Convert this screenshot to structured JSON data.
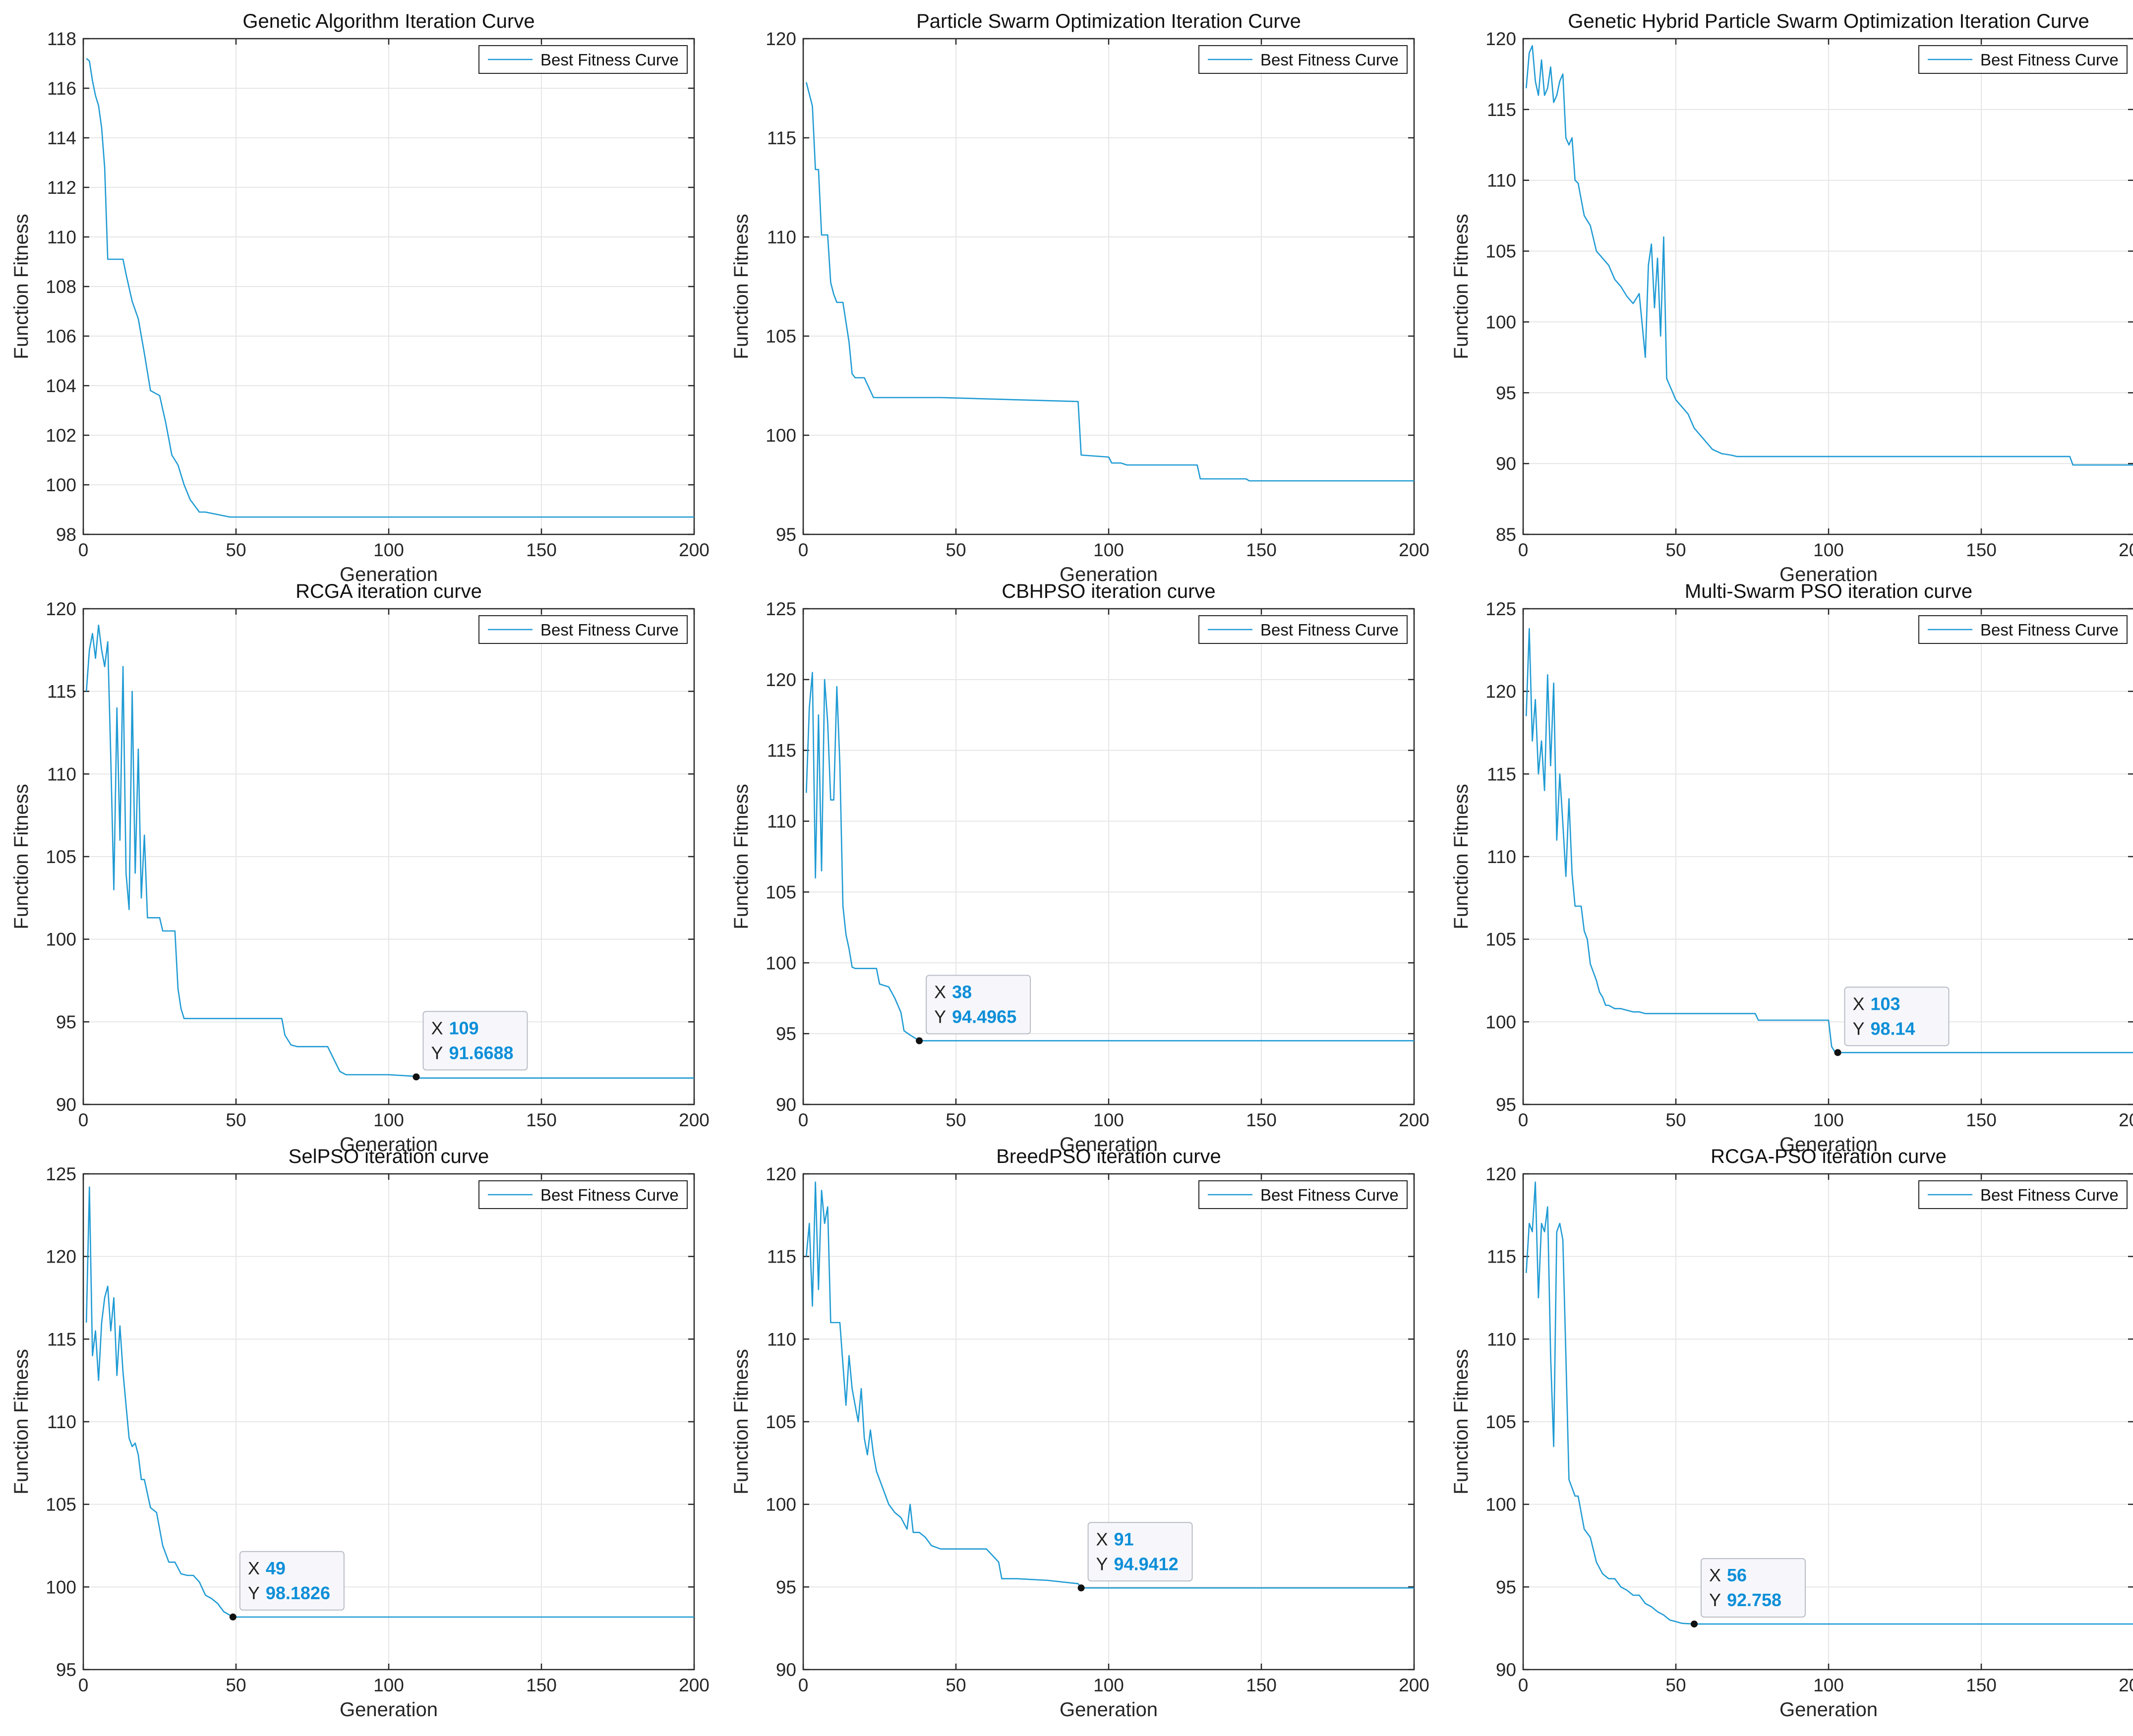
{
  "colors": {
    "line": "#1f9bd4",
    "grid": "#e6e6e6",
    "axes": "#262626",
    "datatip_value": "#0e8fd8",
    "datatip_bg": "#f7f7fb",
    "datatip_border": "#b8bcc6"
  },
  "common": {
    "xlabel": "Generation",
    "ylabel": "Function Fitness",
    "legend_label": "Best Fitness Curve",
    "x_ticks": [
      0,
      50,
      100,
      150,
      200
    ],
    "datatip_x_label": "X",
    "datatip_y_label": "Y"
  },
  "chart_data": [
    {
      "type": "line",
      "title": "Genetic Algorithm Iteration Curve",
      "xlabel": "Generation",
      "ylabel": "Function Fitness",
      "xlim": [
        0,
        200
      ],
      "ylim": [
        98,
        118
      ],
      "y_ticks": [
        98,
        100,
        102,
        104,
        106,
        108,
        110,
        112,
        114,
        116,
        118
      ],
      "legend": [
        "Best Fitness Curve"
      ],
      "legend_position": "top-right",
      "series": [
        {
          "name": "Best Fitness Curve",
          "x": [
            1,
            2,
            3,
            4,
            5,
            6,
            7,
            8,
            12,
            13,
            14,
            16,
            18,
            20,
            22,
            25,
            27,
            29,
            31,
            33,
            35,
            38,
            40,
            44,
            48,
            200
          ],
          "y": [
            117.2,
            117.1,
            116.3,
            115.7,
            115.3,
            114.4,
            112.8,
            109.1,
            109.1,
            109.1,
            108.5,
            107.4,
            106.7,
            105.3,
            103.8,
            103.6,
            102.5,
            101.2,
            100.8,
            100.0,
            99.4,
            98.9,
            98.9,
            98.8,
            98.7,
            98.7
          ]
        }
      ],
      "datatip": null
    },
    {
      "type": "line",
      "title": "Particle Swarm Optimization Iteration Curve",
      "xlabel": "Generation",
      "ylabel": "Function Fitness",
      "xlim": [
        0,
        200
      ],
      "ylim": [
        95,
        120
      ],
      "y_ticks": [
        95,
        100,
        105,
        110,
        115,
        120
      ],
      "legend": [
        "Best Fitness Curve"
      ],
      "legend_position": "top-right",
      "series": [
        {
          "name": "Best Fitness Curve",
          "x": [
            1,
            3,
            4,
            5,
            6,
            8,
            9,
            10,
            11,
            13,
            15,
            16,
            17,
            20,
            23,
            45,
            90,
            91,
            100,
            101,
            104,
            106,
            129,
            130,
            145,
            146,
            200
          ],
          "y": [
            117.8,
            116.6,
            113.4,
            113.4,
            110.1,
            110.1,
            107.7,
            107.1,
            106.7,
            106.7,
            104.7,
            103.1,
            102.9,
            102.9,
            101.9,
            101.9,
            101.7,
            99.0,
            98.9,
            98.6,
            98.6,
            98.5,
            98.5,
            97.8,
            97.8,
            97.7,
            97.7
          ]
        }
      ],
      "datatip": null
    },
    {
      "type": "line",
      "title": "Genetic Hybrid Particle Swarm Optimization Iteration Curve",
      "xlabel": "Generation",
      "ylabel": "Function Fitness",
      "xlim": [
        0,
        200
      ],
      "ylim": [
        85,
        120
      ],
      "y_ticks": [
        85,
        90,
        95,
        100,
        105,
        110,
        115,
        120
      ],
      "legend": [
        "Best Fitness Curve"
      ],
      "legend_position": "top-right",
      "series": [
        {
          "name": "Best Fitness Curve",
          "x": [
            1,
            2,
            3,
            4,
            5,
            6,
            7,
            8,
            9,
            10,
            11,
            12,
            13,
            14,
            15,
            16,
            17,
            18,
            20,
            22,
            24,
            26,
            28,
            30,
            32,
            34,
            36,
            38,
            40,
            41,
            42,
            43,
            44,
            45,
            46,
            47,
            48,
            50,
            52,
            54,
            56,
            58,
            60,
            62,
            65,
            68,
            70,
            75,
            80,
            100,
            150,
            179,
            180,
            200
          ],
          "y": [
            116.5,
            119.0,
            119.5,
            117.0,
            116.0,
            118.5,
            116.0,
            116.5,
            118.0,
            115.5,
            116.0,
            117.0,
            117.5,
            113.0,
            112.5,
            113.0,
            110.0,
            109.8,
            107.5,
            106.8,
            105.0,
            104.5,
            104.0,
            103.0,
            102.5,
            101.8,
            101.3,
            102.0,
            97.5,
            104.0,
            105.5,
            101.0,
            104.5,
            99.0,
            106.0,
            96.0,
            95.5,
            94.5,
            94.0,
            93.5,
            92.5,
            92.0,
            91.5,
            91.0,
            90.7,
            90.6,
            90.5,
            90.5,
            90.5,
            90.5,
            90.5,
            90.5,
            89.9,
            89.9
          ]
        }
      ],
      "datatip": null
    },
    {
      "type": "line",
      "title": "RCGA iteration curve",
      "xlabel": "Generation",
      "ylabel": "Function Fitness",
      "xlim": [
        0,
        200
      ],
      "ylim": [
        90,
        120
      ],
      "y_ticks": [
        90,
        95,
        100,
        105,
        110,
        115,
        120
      ],
      "legend": [
        "Best Fitness Curve"
      ],
      "legend_position": "top-right",
      "series": [
        {
          "name": "Best Fitness Curve",
          "x": [
            1,
            2,
            3,
            4,
            5,
            6,
            7,
            8,
            9,
            10,
            11,
            12,
            13,
            14,
            15,
            16,
            17,
            18,
            19,
            20,
            21,
            22,
            25,
            26,
            28,
            30,
            31,
            32,
            33,
            34,
            40,
            50,
            65,
            66,
            68,
            70,
            80,
            84,
            86,
            100,
            109,
            110,
            200
          ],
          "y": [
            115.0,
            117.5,
            118.5,
            117.0,
            119.0,
            117.5,
            116.5,
            118.0,
            111.0,
            103.0,
            114.0,
            106.0,
            116.5,
            104.0,
            101.8,
            115.0,
            104.0,
            111.5,
            102.5,
            106.3,
            101.3,
            101.3,
            101.3,
            100.5,
            100.5,
            100.5,
            97.0,
            95.8,
            95.2,
            95.2,
            95.2,
            95.2,
            95.2,
            94.2,
            93.6,
            93.5,
            93.5,
            92.0,
            91.8,
            91.8,
            91.7,
            91.6,
            91.6
          ]
        }
      ],
      "datatip": {
        "x": 109,
        "y": 91.6688,
        "x_text": "109",
        "y_text": "91.6688"
      }
    },
    {
      "type": "line",
      "title": "CBHPSO iteration curve",
      "xlabel": "Generation",
      "ylabel": "Function Fitness",
      "xlim": [
        0,
        200
      ],
      "ylim": [
        90,
        125
      ],
      "y_ticks": [
        90,
        95,
        100,
        105,
        110,
        115,
        120,
        125
      ],
      "legend": [
        "Best Fitness Curve"
      ],
      "legend_position": "top-right",
      "series": [
        {
          "name": "Best Fitness Curve",
          "x": [
            1,
            2,
            3,
            4,
            5,
            6,
            7,
            8,
            9,
            10,
            11,
            12,
            13,
            14,
            15,
            16,
            17,
            20,
            24,
            25,
            28,
            30,
            32,
            33,
            35,
            38,
            40,
            60,
            100,
            200
          ],
          "y": [
            112.0,
            118.0,
            120.5,
            106.0,
            117.5,
            106.5,
            120.0,
            117.0,
            111.5,
            111.5,
            119.5,
            114.0,
            104.0,
            102.0,
            101.0,
            99.7,
            99.6,
            99.6,
            99.6,
            98.5,
            98.3,
            97.5,
            96.5,
            95.2,
            94.9,
            94.5,
            94.5,
            94.5,
            94.5,
            94.5
          ]
        }
      ],
      "datatip": {
        "x": 38,
        "y": 94.4965,
        "x_text": "38",
        "y_text": "94.4965"
      }
    },
    {
      "type": "line",
      "title": "Multi-Swarm PSO iteration curve",
      "xlabel": "Generation",
      "ylabel": "Function Fitness",
      "xlim": [
        0,
        200
      ],
      "ylim": [
        95,
        125
      ],
      "y_ticks": [
        95,
        100,
        105,
        110,
        115,
        120,
        125
      ],
      "legend": [
        "Best Fitness Curve"
      ],
      "legend_position": "top-right",
      "series": [
        {
          "name": "Best Fitness Curve",
          "x": [
            1,
            2,
            3,
            4,
            5,
            6,
            7,
            8,
            9,
            10,
            11,
            12,
            13,
            14,
            15,
            16,
            17,
            18,
            19,
            20,
            21,
            22,
            23,
            24,
            25,
            26,
            27,
            28,
            30,
            32,
            34,
            36,
            38,
            40,
            50,
            60,
            76,
            77,
            90,
            100,
            101,
            102,
            103,
            110,
            200
          ],
          "y": [
            118.5,
            123.8,
            117.0,
            119.5,
            115.0,
            117.0,
            114.0,
            121.0,
            115.5,
            120.5,
            111.0,
            115.0,
            112.0,
            108.8,
            113.5,
            109.0,
            107.0,
            107.0,
            107.0,
            105.5,
            105.0,
            103.5,
            103.0,
            102.5,
            101.8,
            101.5,
            101.0,
            101.0,
            100.8,
            100.8,
            100.7,
            100.6,
            100.6,
            100.5,
            100.5,
            100.5,
            100.5,
            100.1,
            100.1,
            100.1,
            98.5,
            98.2,
            98.14,
            98.14,
            98.14
          ]
        }
      ],
      "datatip": {
        "x": 103,
        "y": 98.14,
        "x_text": "103",
        "y_text": "98.14"
      }
    },
    {
      "type": "line",
      "title": "SelPSO iteration curve",
      "xlabel": "Generation",
      "ylabel": "Function Fitness",
      "xlim": [
        0,
        200
      ],
      "ylim": [
        95,
        125
      ],
      "y_ticks": [
        95,
        100,
        105,
        110,
        115,
        120,
        125
      ],
      "legend": [
        "Best Fitness Curve"
      ],
      "legend_position": "top-right",
      "series": [
        {
          "name": "Best Fitness Curve",
          "x": [
            1,
            2,
            3,
            4,
            5,
            6,
            7,
            8,
            9,
            10,
            11,
            12,
            13,
            14,
            15,
            16,
            17,
            18,
            19,
            20,
            22,
            24,
            26,
            28,
            30,
            32,
            34,
            36,
            38,
            40,
            42,
            44,
            46,
            49,
            60,
            100,
            200
          ],
          "y": [
            116.0,
            124.2,
            114.0,
            115.5,
            112.5,
            116.0,
            117.5,
            118.2,
            115.5,
            117.5,
            112.8,
            115.8,
            113.0,
            111.0,
            109.0,
            108.5,
            108.7,
            108.0,
            106.5,
            106.5,
            104.8,
            104.5,
            102.5,
            101.5,
            101.5,
            100.8,
            100.7,
            100.7,
            100.3,
            99.5,
            99.3,
            99.0,
            98.5,
            98.18,
            98.18,
            98.18,
            98.18
          ]
        }
      ],
      "datatip": {
        "x": 49,
        "y": 98.1826,
        "x_text": "49",
        "y_text": "98.1826"
      }
    },
    {
      "type": "line",
      "title": "BreedPSO iteration curve",
      "xlabel": "Generation",
      "ylabel": "Function Fitness",
      "xlim": [
        0,
        200
      ],
      "ylim": [
        90,
        120
      ],
      "y_ticks": [
        90,
        95,
        100,
        105,
        110,
        115,
        120
      ],
      "legend": [
        "Best Fitness Curve"
      ],
      "legend_position": "top-right",
      "series": [
        {
          "name": "Best Fitness Curve",
          "x": [
            1,
            2,
            3,
            4,
            5,
            6,
            7,
            8,
            9,
            10,
            11,
            12,
            14,
            15,
            16,
            17,
            18,
            19,
            20,
            21,
            22,
            23,
            24,
            25,
            26,
            27,
            28,
            30,
            32,
            34,
            35,
            36,
            38,
            40,
            42,
            45,
            50,
            55,
            60,
            64,
            65,
            70,
            80,
            90,
            91,
            100,
            200
          ],
          "y": [
            115.0,
            117.0,
            112.0,
            119.5,
            113.0,
            119.0,
            117.0,
            118.0,
            111.0,
            111.0,
            111.0,
            111.0,
            106.0,
            109.0,
            107.0,
            106.0,
            105.0,
            107.0,
            104.0,
            103.0,
            104.5,
            103.0,
            102.0,
            101.5,
            101.0,
            100.5,
            100.0,
            99.5,
            99.2,
            98.5,
            100.0,
            98.3,
            98.3,
            98.0,
            97.5,
            97.3,
            97.3,
            97.3,
            97.3,
            96.5,
            95.5,
            95.5,
            95.4,
            95.2,
            94.94,
            94.94,
            94.94
          ]
        }
      ],
      "datatip": {
        "x": 91,
        "y": 94.9412,
        "x_text": "91",
        "y_text": "94.9412"
      }
    },
    {
      "type": "line",
      "title": "RCGA-PSO iteration curve",
      "xlabel": "Generation",
      "ylabel": "Function Fitness",
      "xlim": [
        0,
        200
      ],
      "ylim": [
        90,
        120
      ],
      "y_ticks": [
        90,
        95,
        100,
        105,
        110,
        115,
        120
      ],
      "legend": [
        "Best Fitness Curve"
      ],
      "legend_position": "top-right",
      "series": [
        {
          "name": "Best Fitness Curve",
          "x": [
            1,
            2,
            3,
            4,
            5,
            6,
            7,
            8,
            9,
            10,
            11,
            12,
            13,
            14,
            15,
            16,
            17,
            18,
            20,
            22,
            24,
            26,
            28,
            30,
            32,
            34,
            36,
            38,
            40,
            42,
            44,
            46,
            48,
            50,
            52,
            56,
            60,
            100,
            200
          ],
          "y": [
            114.0,
            117.0,
            116.5,
            119.5,
            112.5,
            117.0,
            116.5,
            118.0,
            109.0,
            103.5,
            116.5,
            117.0,
            116.0,
            109.0,
            101.5,
            101.0,
            100.5,
            100.5,
            98.5,
            98.0,
            96.5,
            95.8,
            95.5,
            95.5,
            95.0,
            94.8,
            94.5,
            94.5,
            94.0,
            93.8,
            93.5,
            93.3,
            93.0,
            92.9,
            92.8,
            92.758,
            92.758,
            92.758,
            92.758
          ]
        }
      ],
      "datatip": {
        "x": 56,
        "y": 92.758,
        "x_text": "56",
        "y_text": "92.758"
      }
    }
  ]
}
